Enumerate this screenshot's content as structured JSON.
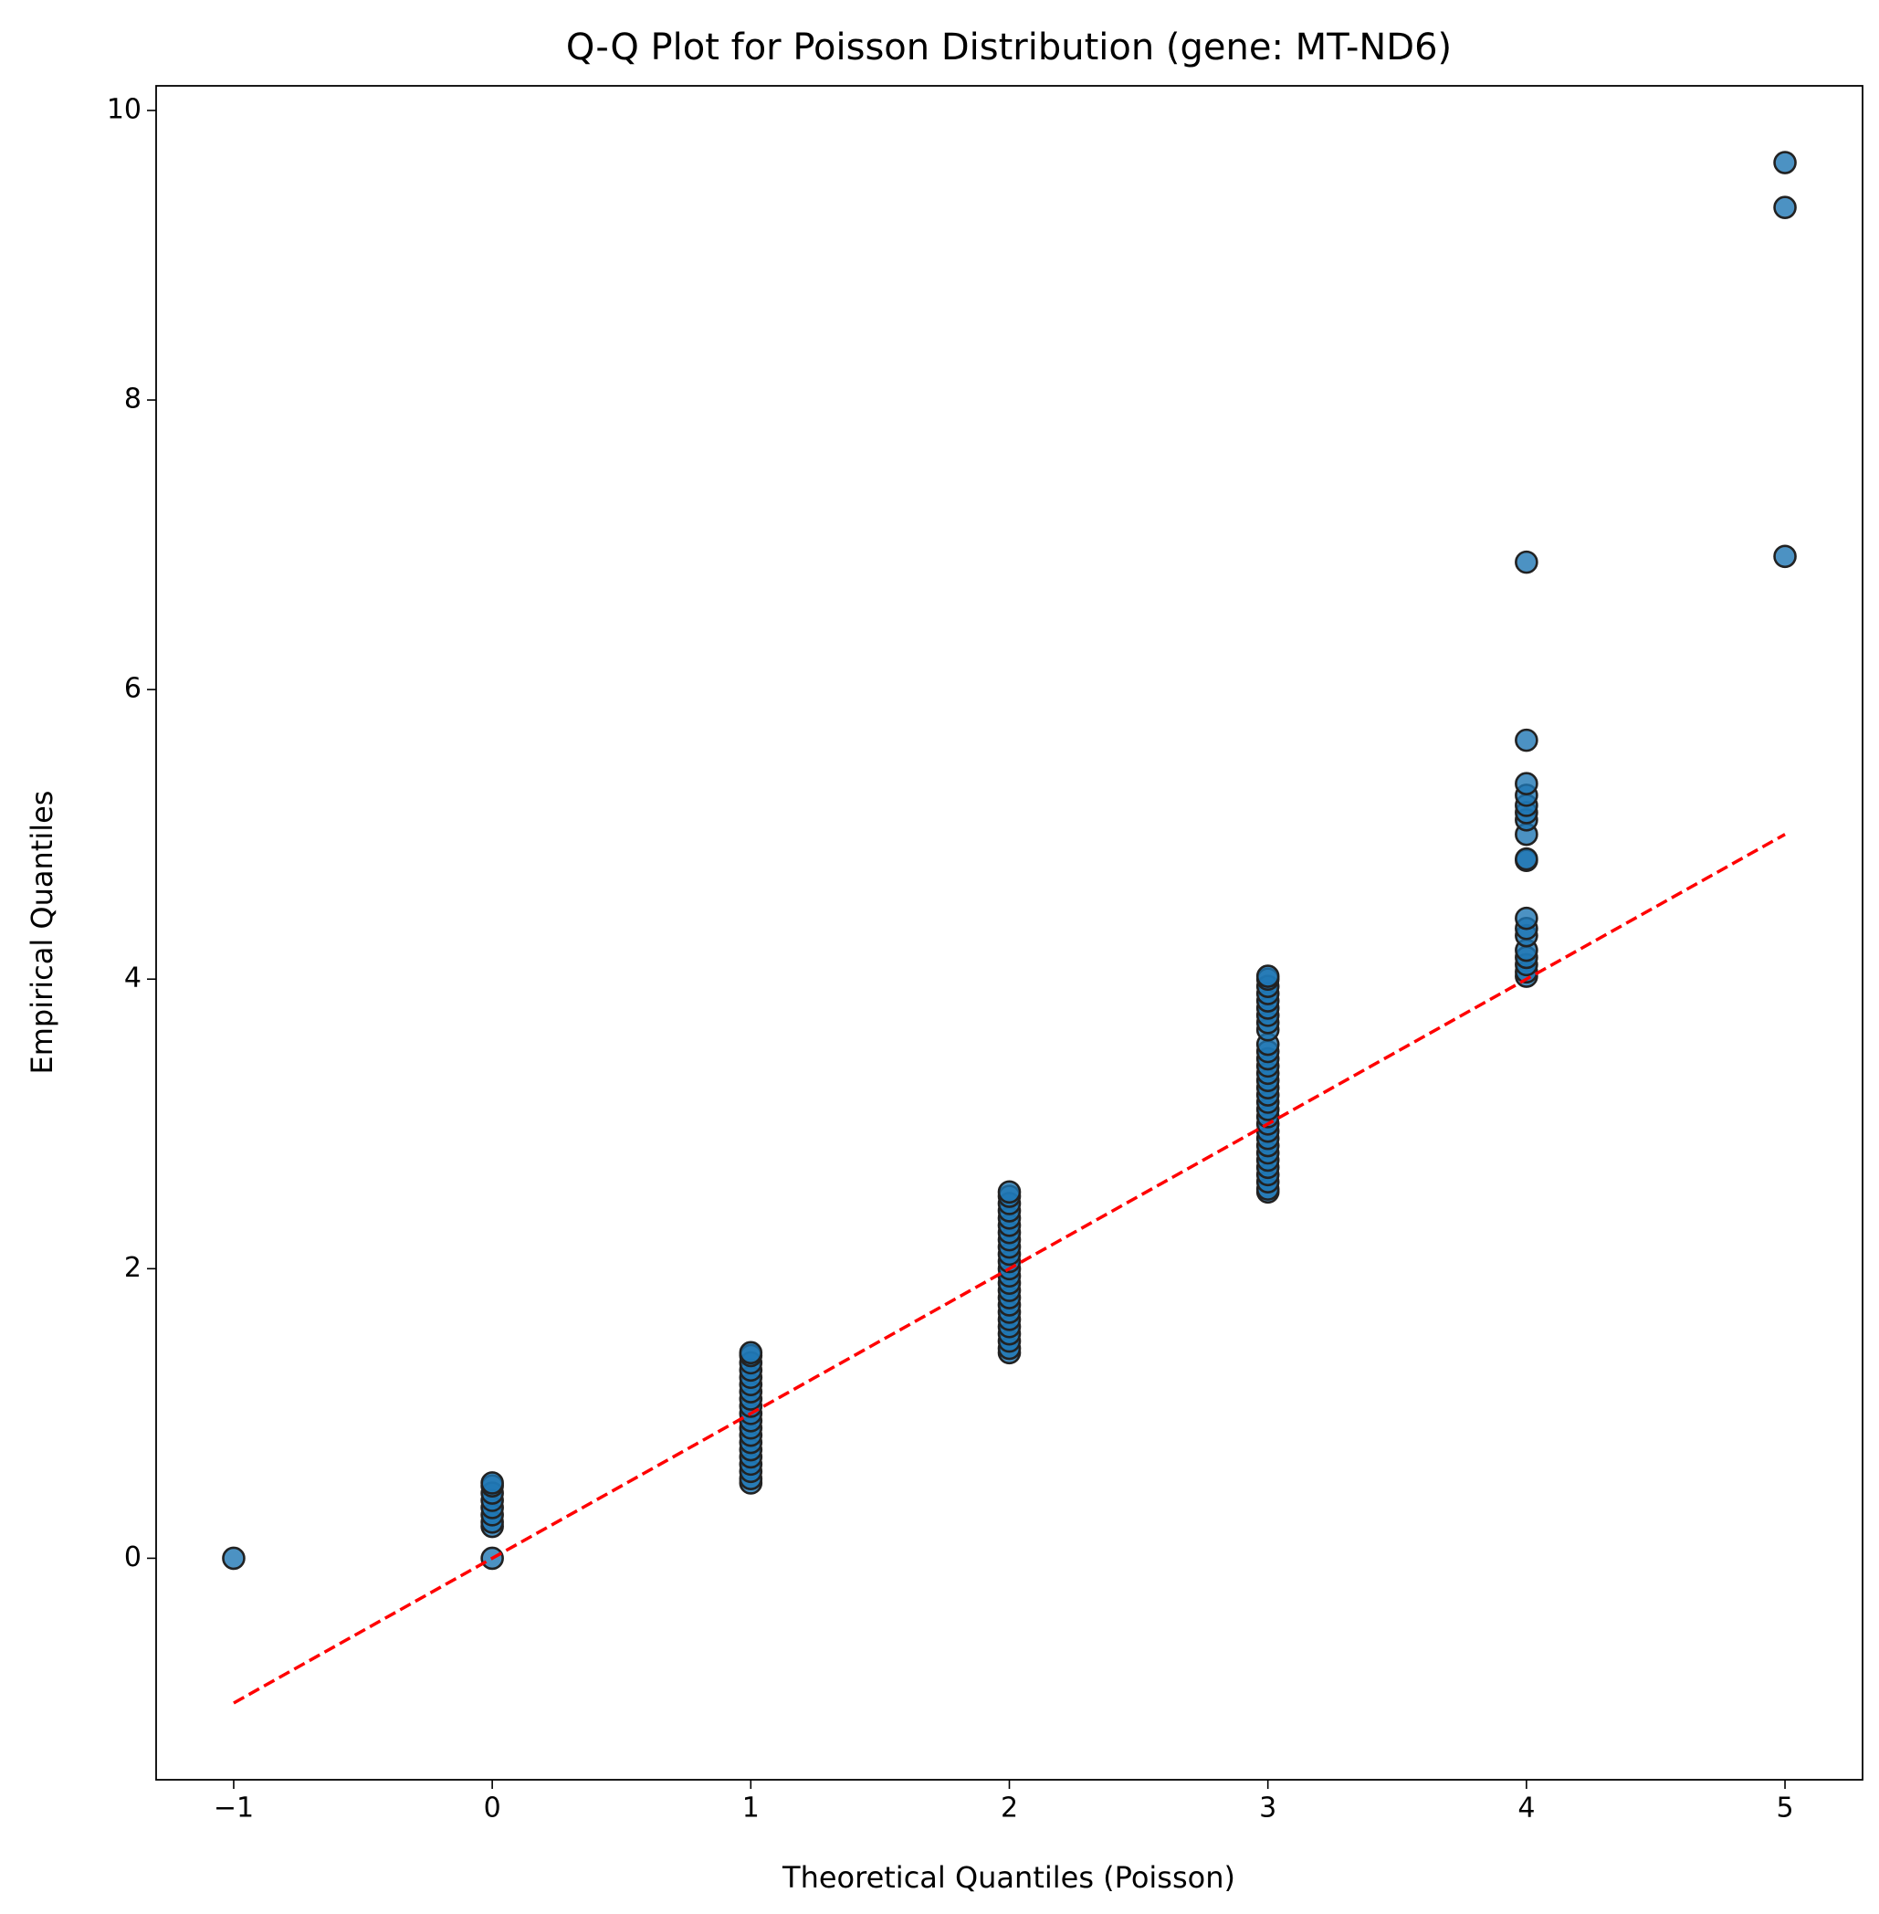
{
  "chart_data": {
    "type": "scatter",
    "title": "Q-Q Plot for Poisson Distribution (gene: MT-ND6)",
    "x_label": "Theoretical Quantiles (Poisson)",
    "y_label": "Empirical Quantiles",
    "xlim": [
      -1.3,
      5.3
    ],
    "ylim": [
      -1.53,
      10.17
    ],
    "xticks": [
      {
        "value": -1,
        "label": "−1"
      },
      0,
      1,
      2,
      3,
      4,
      5
    ],
    "yticks": [
      0,
      2,
      4,
      6,
      8,
      10
    ],
    "series": [
      {
        "type": "scatter",
        "color": "#1f77b4",
        "x": [
          -1,
          0,
          0,
          0,
          0,
          0,
          0,
          0,
          0,
          0,
          1,
          1,
          1,
          1,
          1,
          1,
          1,
          1,
          1,
          1,
          1,
          1,
          1,
          1,
          1,
          1,
          1,
          1,
          1,
          1,
          2,
          2,
          2,
          2,
          2,
          2,
          2,
          2,
          2,
          2,
          2,
          2,
          2,
          2,
          2,
          2,
          2,
          2,
          2,
          2,
          2,
          2,
          2,
          2,
          3,
          3,
          3,
          3,
          3,
          3,
          3,
          3,
          3,
          3,
          3,
          3,
          3,
          3,
          3,
          3,
          3,
          3,
          3,
          3,
          3,
          3,
          3,
          3,
          3,
          3,
          3,
          3,
          3,
          3,
          3,
          4,
          4,
          4,
          4,
          4,
          4,
          4,
          4,
          4,
          4,
          4,
          4,
          4,
          4,
          4,
          4,
          4,
          4,
          5,
          5,
          5
        ],
        "values": [
          0,
          0,
          0.22,
          0.25,
          0.3,
          0.35,
          0.4,
          0.45,
          0.5,
          0.52,
          0.52,
          0.55,
          0.6,
          0.65,
          0.7,
          0.75,
          0.8,
          0.85,
          0.9,
          0.95,
          1.0,
          1.05,
          1.1,
          1.15,
          1.2,
          1.25,
          1.3,
          1.35,
          1.4,
          1.42,
          1.42,
          1.45,
          1.5,
          1.55,
          1.6,
          1.65,
          1.7,
          1.75,
          1.8,
          1.85,
          1.9,
          1.95,
          2.0,
          2.05,
          2.1,
          2.15,
          2.2,
          2.25,
          2.3,
          2.35,
          2.4,
          2.45,
          2.5,
          2.53,
          2.53,
          2.55,
          2.6,
          2.65,
          2.7,
          2.75,
          2.8,
          2.85,
          2.9,
          2.95,
          3.0,
          3.05,
          3.1,
          3.15,
          3.2,
          3.25,
          3.3,
          3.35,
          3.4,
          3.45,
          3.5,
          3.55,
          3.65,
          3.7,
          3.75,
          3.8,
          3.85,
          3.9,
          3.95,
          4.0,
          4.02,
          4.02,
          4.05,
          4.1,
          4.15,
          4.2,
          4.3,
          4.35,
          4.42,
          4.82,
          4.83,
          5.0,
          5.1,
          5.15,
          5.2,
          5.27,
          5.35,
          5.65,
          6.88,
          6.92,
          9.33,
          9.64
        ]
      },
      {
        "type": "line",
        "color": "#ff0000",
        "style": "dashed",
        "x": [
          -1,
          5
        ],
        "values": [
          -1,
          5
        ]
      }
    ]
  }
}
